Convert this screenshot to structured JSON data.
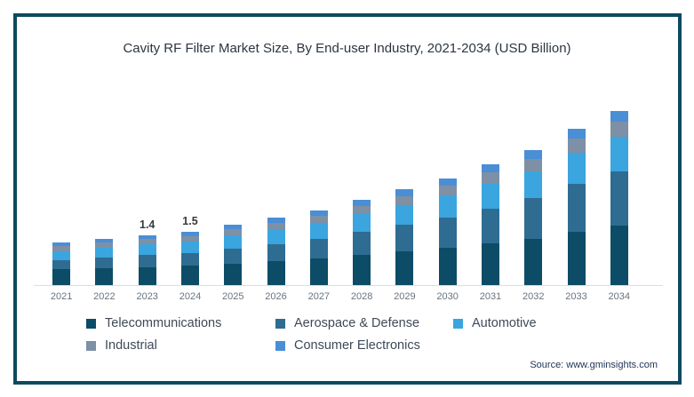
{
  "title": "Cavity RF Filter Market Size, By End-user Industry, 2021-2034 (USD Billion)",
  "source_note": "Source: www.gminsights.com",
  "colors": {
    "frame_border": "#0e4a5f",
    "axis_line": "#d9dee3",
    "title_text": "#2c3540",
    "x_label_text": "#68747f",
    "legend_text": "#3f4a56",
    "source_text": "#1d3354"
  },
  "chart_data": {
    "type": "bar",
    "stacked": true,
    "title": "Cavity RF Filter Market Size, By End-user Industry, 2021-2034 (USD Billion)",
    "xlabel": "",
    "ylabel": "USD Billion",
    "grid": false,
    "legend_position": "bottom",
    "y_axis_visible": false,
    "ylim": [
      0,
      5.5
    ],
    "categories": [
      "2021",
      "2022",
      "2023",
      "2024",
      "2025",
      "2026",
      "2027",
      "2028",
      "2029",
      "2030",
      "2031",
      "2032",
      "2033",
      "2034"
    ],
    "series": [
      {
        "name": "Telecommunications",
        "color": "#0d4c66",
        "values": [
          0.44,
          0.48,
          0.51,
          0.54,
          0.61,
          0.68,
          0.75,
          0.85,
          0.95,
          1.05,
          1.18,
          1.31,
          1.51,
          1.67
        ]
      },
      {
        "name": "Aerospace & Defense",
        "color": "#2f6c91",
        "values": [
          0.26,
          0.3,
          0.33,
          0.36,
          0.42,
          0.48,
          0.55,
          0.64,
          0.74,
          0.85,
          0.98,
          1.13,
          1.33,
          1.52
        ]
      },
      {
        "name": "Automotive",
        "color": "#3aa5de",
        "values": [
          0.26,
          0.28,
          0.3,
          0.32,
          0.36,
          0.4,
          0.44,
          0.5,
          0.56,
          0.62,
          0.7,
          0.77,
          0.89,
          0.98
        ]
      },
      {
        "name": "Industrial",
        "color": "#7e90a5",
        "values": [
          0.13,
          0.14,
          0.15,
          0.16,
          0.18,
          0.19,
          0.21,
          0.24,
          0.26,
          0.29,
          0.32,
          0.35,
          0.4,
          0.44
        ]
      },
      {
        "name": "Consumer Electronics",
        "color": "#4a8ed6",
        "values": [
          0.1,
          0.1,
          0.11,
          0.11,
          0.13,
          0.14,
          0.15,
          0.17,
          0.18,
          0.2,
          0.22,
          0.24,
          0.27,
          0.29
        ]
      }
    ],
    "totals_estimated": [
      1.2,
      1.3,
      1.4,
      1.5,
      1.7,
      1.9,
      2.1,
      2.4,
      2.7,
      3.0,
      3.4,
      3.8,
      4.4,
      4.9
    ],
    "bar_labels": [
      "",
      "",
      "1.4",
      "1.5",
      "",
      "",
      "",
      "",
      "",
      "",
      "",
      "",
      "",
      ""
    ]
  }
}
